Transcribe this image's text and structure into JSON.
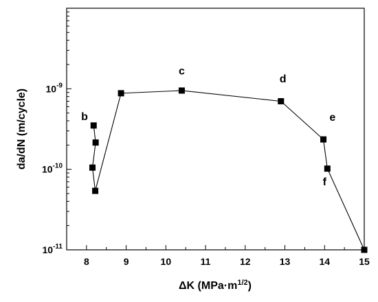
{
  "chart_data": {
    "type": "scatter",
    "xlabel": "ΔK (MPa·m",
    "xlabel_sup": "1/2",
    "xlabel_end": ")",
    "ylabel": "da/dN (m/cycle)",
    "x_scale": "linear",
    "y_scale": "log",
    "xlim": [
      7.5,
      15
    ],
    "ylim": [
      1e-11,
      1e-08
    ],
    "grid": false,
    "marker": "square",
    "line_connected": true,
    "x_ticks": [
      8,
      9,
      10,
      11,
      12,
      13,
      14,
      15
    ],
    "y_ticks": [
      {
        "value": 1e-11,
        "base": "10",
        "exp": "-11"
      },
      {
        "value": 1e-10,
        "base": "10",
        "exp": "-10"
      },
      {
        "value": 1e-09,
        "base": "10",
        "exp": "-9"
      }
    ],
    "series": [
      {
        "points": [
          {
            "x": 8.18,
            "y": 3.5e-10
          },
          {
            "x": 8.23,
            "y": 2.15e-10
          },
          {
            "x": 8.15,
            "y": 1.05e-10
          },
          {
            "x": 8.22,
            "y": 5.4e-11
          },
          {
            "x": 8.87,
            "y": 8.8e-10
          },
          {
            "x": 10.4,
            "y": 9.5e-10
          },
          {
            "x": 12.9,
            "y": 7e-10
          },
          {
            "x": 13.97,
            "y": 2.35e-10
          },
          {
            "x": 14.07,
            "y": 1.02e-10
          },
          {
            "x": 15.0,
            "y": 1e-11
          }
        ]
      }
    ],
    "annotations": [
      {
        "text": "b",
        "x": 7.95,
        "y": 4.1e-10
      },
      {
        "text": "c",
        "x": 10.4,
        "y": 1.5e-09
      },
      {
        "text": "d",
        "x": 12.95,
        "y": 1.2e-09
      },
      {
        "text": "e",
        "x": 14.2,
        "y": 4e-10
      },
      {
        "text": "f",
        "x": 14.0,
        "y": 6.3e-11
      }
    ]
  }
}
